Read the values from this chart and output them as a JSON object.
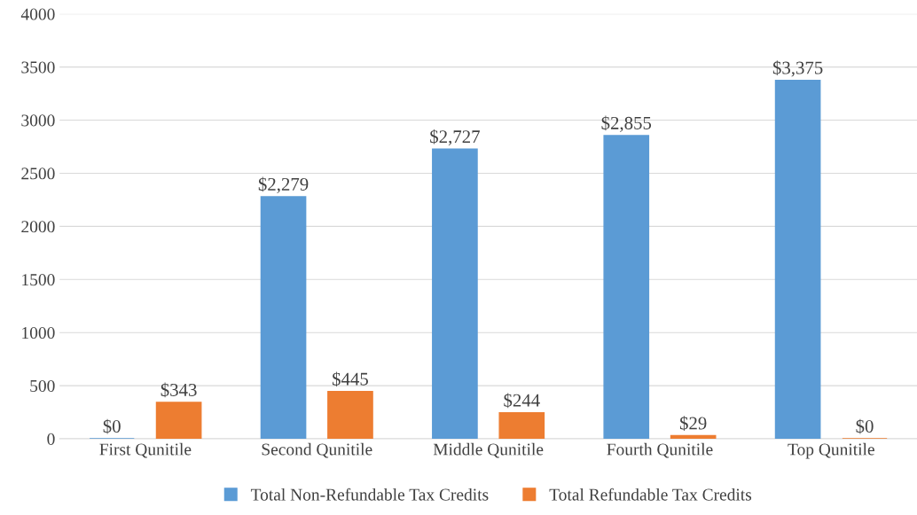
{
  "chart_data": {
    "type": "bar",
    "categories": [
      "First Qunitile",
      "Second Qunitile",
      "Middle Qunitile",
      "Fourth Qunitile",
      "Top Qunitile"
    ],
    "series": [
      {
        "name": "Total Non-Refundable Tax Credits",
        "color": "#5b9bd5",
        "values": [
          0,
          2279,
          2727,
          2855,
          3375
        ],
        "value_labels": [
          "$0",
          "$2,279",
          "$2,727",
          "$2,855",
          "$3,375"
        ]
      },
      {
        "name": "Total Refundable Tax Credits",
        "color": "#ed7d31",
        "values": [
          343,
          445,
          244,
          29,
          0
        ],
        "value_labels": [
          "$343",
          "$445",
          "$244",
          "$29",
          "$0"
        ]
      }
    ],
    "ylim": [
      0,
      4000
    ],
    "yticks": [
      0,
      500,
      1000,
      1500,
      2000,
      2500,
      3000,
      3500,
      4000
    ],
    "grid": "y",
    "legend": "bottom"
  }
}
